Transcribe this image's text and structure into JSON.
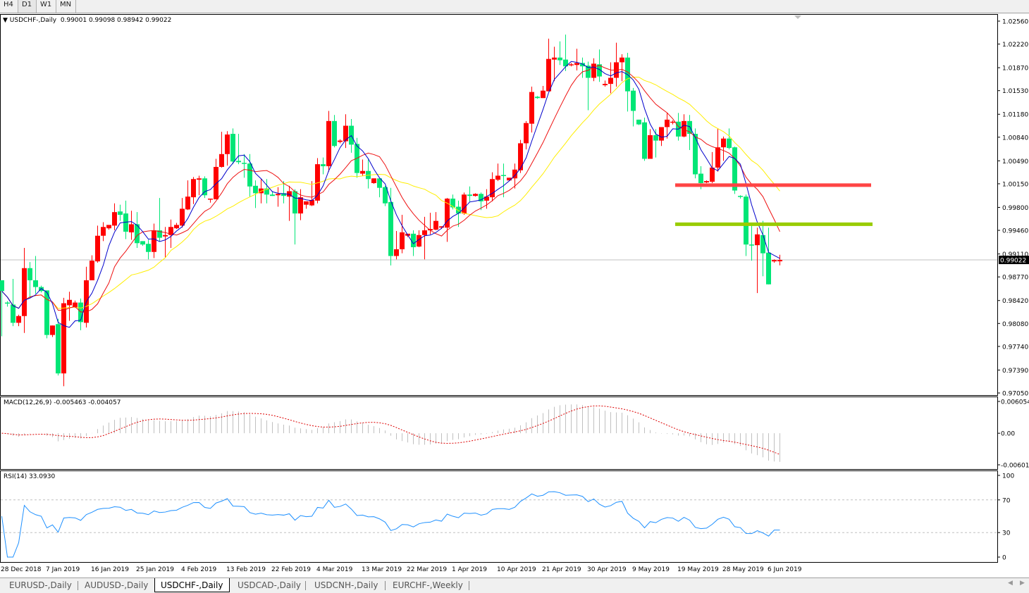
{
  "toolbar": {
    "timeframes": [
      {
        "label": "H4"
      },
      {
        "label": "D1"
      },
      {
        "label": "W1"
      },
      {
        "label": "MN"
      }
    ]
  },
  "chart": {
    "symbol_label": "USDCHF-,Daily",
    "ohlc_label": "0.99001 0.99098 0.98942 0.99022",
    "current_price": 0.99022,
    "current_price_label": "0.99022",
    "colors": {
      "bull": "#ff0000",
      "bear": "#00e676",
      "ma_fast": "#0000cc",
      "ma_mid": "#ee1111",
      "ma_slow": "#ffee00",
      "grid_line": "#c0c0c0"
    },
    "price_axis": [
      "1.02560",
      "1.02220",
      "1.01870",
      "1.01530",
      "1.01180",
      "1.00840",
      "1.00490",
      "1.00150",
      "0.99800",
      "0.99460",
      "0.99110",
      "0.98770",
      "0.98420",
      "0.98080",
      "0.97740",
      "0.97390",
      "0.97050"
    ],
    "levels": [
      {
        "price": 1.0013,
        "color": "#ff4444"
      },
      {
        "price": 0.9955,
        "color": "#99cc00"
      }
    ],
    "dates": [
      "28 Dec 2018",
      "7 Jan 2019",
      "16 Jan 2019",
      "25 Jan 2019",
      "4 Feb 2019",
      "13 Feb 2019",
      "22 Feb 2019",
      "4 Mar 2019",
      "13 Mar 2019",
      "22 Mar 2019",
      "1 Apr 2019",
      "10 Apr 2019",
      "21 Apr 2019",
      "30 Apr 2019",
      "9 May 2019",
      "19 May 2019",
      "28 May 2019",
      "6 Jun 2019"
    ],
    "candles": [
      [
        0.9872,
        0.9872,
        0.9789,
        0.9856
      ],
      [
        0.9839,
        0.9841,
        0.9833,
        0.9838
      ],
      [
        0.9836,
        0.9874,
        0.9804,
        0.9809
      ],
      [
        0.9809,
        0.9821,
        0.9804,
        0.9819
      ],
      [
        0.9819,
        0.992,
        0.9794,
        0.989
      ],
      [
        0.989,
        0.9899,
        0.9846,
        0.9872
      ],
      [
        0.9872,
        0.9908,
        0.9852,
        0.9862
      ],
      [
        0.9862,
        0.9864,
        0.9854,
        0.9856
      ],
      [
        0.9857,
        0.9857,
        0.9786,
        0.9791
      ],
      [
        0.9791,
        0.9805,
        0.9788,
        0.9805
      ],
      [
        0.9807,
        0.9815,
        0.9731,
        0.9734
      ],
      [
        0.9734,
        0.9846,
        0.9715,
        0.9838
      ],
      [
        0.9835,
        0.9855,
        0.9812,
        0.9843
      ],
      [
        0.9832,
        0.9842,
        0.9831,
        0.9839
      ],
      [
        0.9839,
        0.9845,
        0.9798,
        0.981
      ],
      [
        0.9809,
        0.9892,
        0.9802,
        0.9872
      ],
      [
        0.9872,
        0.9909,
        0.9872,
        0.9901
      ],
      [
        0.99,
        0.9953,
        0.9898,
        0.9938
      ],
      [
        0.9938,
        0.9958,
        0.993,
        0.9951
      ],
      [
        0.9949,
        0.9954,
        0.9947,
        0.9954
      ],
      [
        0.9953,
        0.9986,
        0.9946,
        0.9973
      ],
      [
        0.9974,
        0.9984,
        0.996,
        0.9969
      ],
      [
        0.9971,
        0.999,
        0.9933,
        0.9944
      ],
      [
        0.9943,
        0.9975,
        0.9932,
        0.9955
      ],
      [
        0.9955,
        0.9973,
        0.992,
        0.9927
      ],
      [
        0.993,
        0.993,
        0.9923,
        0.9925
      ],
      [
        0.9926,
        0.9932,
        0.9903,
        0.9914
      ],
      [
        0.9914,
        0.9956,
        0.9905,
        0.9946
      ],
      [
        0.9946,
        0.9994,
        0.993,
        0.9935
      ],
      [
        0.9937,
        0.9951,
        0.9906,
        0.9939
      ],
      [
        0.9939,
        0.9962,
        0.992,
        0.9951
      ],
      [
        0.9949,
        0.9957,
        0.9948,
        0.9954
      ],
      [
        0.9953,
        0.9994,
        0.995,
        0.9978
      ],
      [
        0.9977,
        1.002,
        0.9976,
        0.9996
      ],
      [
        0.9995,
        1.0025,
        0.9985,
        1.0022
      ],
      [
        1.0021,
        1.0027,
        0.9998,
        1.0023
      ],
      [
        1.0023,
        1.0026,
        0.9994,
        0.9998
      ],
      [
        0.9992,
        0.9993,
        0.9987,
        0.9993
      ],
      [
        0.9992,
        1.0052,
        0.9992,
        1.004
      ],
      [
        1.004,
        1.0092,
        1.0039,
        1.0059
      ],
      [
        1.0059,
        1.0093,
        1.0042,
        1.0088
      ],
      [
        1.0089,
        1.0097,
        1.0044,
        1.0048
      ],
      [
        1.0049,
        1.0089,
        1.0044,
        1.0047
      ],
      [
        1.0046,
        1.0059,
        1.0024,
        1.0045
      ],
      [
        1.0045,
        1.0059,
        0.9996,
        1.0011
      ],
      [
        1.0012,
        1.002,
        0.9979,
        1.0001
      ],
      [
        1.0001,
        1.0022,
        0.9986,
        1.0008
      ],
      [
        1.0008,
        1.0022,
        0.9986,
        0.9999
      ],
      [
        0.9999,
        1.0004,
        0.9997,
        0.9997
      ],
      [
        0.9998,
        1.001,
        0.9981,
        1.0
      ],
      [
        1.0001,
        1.0019,
        0.9986,
        0.9997
      ],
      [
        0.9996,
        1.0012,
        0.996,
        1.0004
      ],
      [
        1.0004,
        1.0007,
        0.9925,
        0.9971
      ],
      [
        0.9971,
        1.0007,
        0.9961,
        0.9995
      ],
      [
        0.9984,
        0.9986,
        0.9978,
        0.9989
      ],
      [
        0.9983,
        1.0019,
        0.9982,
        0.9991
      ],
      [
        0.999,
        1.0053,
        0.9986,
        1.0044
      ],
      [
        1.0044,
        1.0054,
        1.0029,
        1.0041
      ],
      [
        1.0041,
        1.0123,
        1.0033,
        1.0108
      ],
      [
        1.0108,
        1.0117,
        1.0069,
        1.0071
      ],
      [
        1.0077,
        1.0081,
        1.0075,
        1.0079
      ],
      [
        1.0078,
        1.0118,
        1.0068,
        1.0101
      ],
      [
        1.0101,
        1.0111,
        1.0061,
        1.0073
      ],
      [
        1.0074,
        1.0083,
        1.0024,
        1.0031
      ],
      [
        1.003,
        1.0051,
        1.0027,
        1.0034
      ],
      [
        1.0034,
        1.0051,
        1.0008,
        1.0022
      ],
      [
        1.0016,
        1.0023,
        1.0015,
        1.0023
      ],
      [
        1.0023,
        1.0023,
        0.9995,
        1.0009
      ],
      [
        1.001,
        1.0012,
        0.9982,
        0.9986
      ],
      [
        0.9988,
        1.0009,
        0.9894,
        0.9908
      ],
      [
        0.9908,
        0.9945,
        0.9903,
        0.9918
      ],
      [
        0.9918,
        0.9969,
        0.9912,
        0.9943
      ],
      [
        0.9938,
        0.994,
        0.9936,
        0.9941
      ],
      [
        0.9941,
        0.9946,
        0.9908,
        0.9921
      ],
      [
        0.9922,
        0.9946,
        0.9921,
        0.9939
      ],
      [
        0.9939,
        0.9966,
        0.9903,
        0.9946
      ],
      [
        0.9946,
        0.9972,
        0.994,
        0.9948
      ],
      [
        0.9947,
        0.9973,
        0.9946,
        0.996
      ],
      [
        0.995,
        0.9952,
        0.9948,
        0.9952
      ],
      [
        0.995,
        0.9994,
        0.9929,
        0.9993
      ],
      [
        0.9993,
        0.9999,
        0.9977,
        0.998
      ],
      [
        0.9981,
        0.999,
        0.9951,
        0.9971
      ],
      [
        0.9971,
        1.0002,
        0.9969,
        0.9999
      ],
      [
        0.9999,
        1.0011,
        0.9988,
        0.9997
      ],
      [
        0.9997,
        1.0001,
        0.9996,
        1.0
      ],
      [
        1.0,
        1.0002,
        0.9976,
        0.9989
      ],
      [
        0.999,
        1.0007,
        0.9978,
        0.9996
      ],
      [
        0.9995,
        1.0032,
        0.9989,
        1.0022
      ],
      [
        1.0021,
        1.0045,
        1.0019,
        1.0027
      ],
      [
        1.0028,
        1.0045,
        0.9995,
        1.0027
      ],
      [
        1.002,
        1.0024,
        1.0019,
        1.0024
      ],
      [
        1.0023,
        1.0045,
        1.0008,
        1.0036
      ],
      [
        1.0035,
        1.008,
        1.0031,
        1.0075
      ],
      [
        1.0075,
        1.0108,
        1.0066,
        1.0105
      ],
      [
        1.0104,
        1.0159,
        1.0091,
        1.0151
      ],
      [
        1.0144,
        1.0145,
        1.0141,
        1.0142
      ],
      [
        1.0142,
        1.016,
        1.0142,
        1.0153
      ],
      [
        1.0152,
        1.023,
        1.0152,
        1.02
      ],
      [
        1.0199,
        1.0218,
        1.0167,
        1.0202
      ],
      [
        1.0202,
        1.0226,
        1.0191,
        1.0198
      ],
      [
        1.0199,
        1.0236,
        1.0182,
        1.0189
      ],
      [
        1.0191,
        1.0194,
        1.0189,
        1.0192
      ],
      [
        1.0191,
        1.0215,
        1.0183,
        1.0194
      ],
      [
        1.0194,
        1.0202,
        1.0172,
        1.0189
      ],
      [
        1.019,
        1.0196,
        1.0124,
        1.0172
      ],
      [
        1.0172,
        1.0201,
        1.0167,
        1.0193
      ],
      [
        1.0192,
        1.0214,
        1.0166,
        1.0174
      ],
      [
        1.0161,
        1.0168,
        1.0159,
        1.0163
      ],
      [
        1.0163,
        1.0195,
        1.0149,
        1.0172
      ],
      [
        1.0172,
        1.0224,
        1.0159,
        1.0195
      ],
      [
        1.0195,
        1.0207,
        1.0167,
        1.0202
      ],
      [
        1.0202,
        1.0209,
        1.0122,
        1.0152
      ],
      [
        1.0153,
        1.0157,
        1.01,
        1.0123
      ],
      [
        1.011,
        1.011,
        1.0102,
        1.0103
      ],
      [
        1.0106,
        1.0113,
        1.0049,
        1.0052
      ],
      [
        1.0052,
        1.0096,
        1.0052,
        1.0087
      ],
      [
        1.0087,
        1.0096,
        1.0054,
        1.0079
      ],
      [
        1.0079,
        1.0099,
        1.0071,
        1.0099
      ],
      [
        1.0099,
        1.012,
        1.0082,
        1.011
      ],
      [
        1.0106,
        1.0109,
        1.0103,
        1.0107
      ],
      [
        1.0107,
        1.012,
        1.0079,
        1.0085
      ],
      [
        1.0085,
        1.0118,
        1.0084,
        1.0108
      ],
      [
        1.0108,
        1.0117,
        1.0065,
        1.0089
      ],
      [
        1.0089,
        1.0097,
        1.0023,
        1.0029
      ],
      [
        1.003,
        1.0041,
        1.0007,
        1.0016
      ],
      [
        1.0017,
        1.002,
        1.0016,
        1.0019
      ],
      [
        1.0018,
        1.0062,
        1.0016,
        1.0039
      ],
      [
        1.0039,
        1.0097,
        1.0033,
        1.0069
      ],
      [
        1.0069,
        1.0085,
        1.0049,
        1.0082
      ],
      [
        1.0082,
        1.0097,
        1.0066,
        1.0068
      ],
      [
        1.0069,
        1.007,
        1.0,
        1.0005
      ],
      [
        0.9997,
        0.9998,
        0.9993,
        0.9996
      ],
      [
        0.9996,
        0.9999,
        0.9908,
        0.9925
      ],
      [
        0.9925,
        0.9953,
        0.9901,
        0.9924
      ],
      [
        0.9924,
        0.995,
        0.9853,
        0.994
      ],
      [
        0.9939,
        0.996,
        0.9878,
        0.9912
      ],
      [
        0.9913,
        0.995,
        0.9866,
        0.9866
      ],
      [
        0.99,
        0.9903,
        0.9898,
        0.9902
      ],
      [
        0.99001,
        0.99098,
        0.98942,
        0.99022
      ]
    ]
  },
  "macd": {
    "label": "MACD(12,26,9) -0.005463 -0.004057",
    "axis": [
      "0.006054",
      "0.00",
      "-0.006011"
    ],
    "hist_color": "#c0c0c0",
    "signal_color": "#dd0000"
  },
  "rsi": {
    "label": "RSI(14) 33.0930",
    "axis": [
      "100",
      "70",
      "30",
      "0"
    ],
    "line_color": "#1e90ff"
  },
  "bottom_tabs": [
    {
      "label": "EURUSD-,Daily"
    },
    {
      "label": "AUDUSD-,Daily"
    },
    {
      "label": "USDCHF-,Daily",
      "active": true
    },
    {
      "label": "USDCAD-,Daily"
    },
    {
      "label": "USDCNH-,Daily"
    },
    {
      "label": "EURCHF-,Weekly"
    }
  ]
}
